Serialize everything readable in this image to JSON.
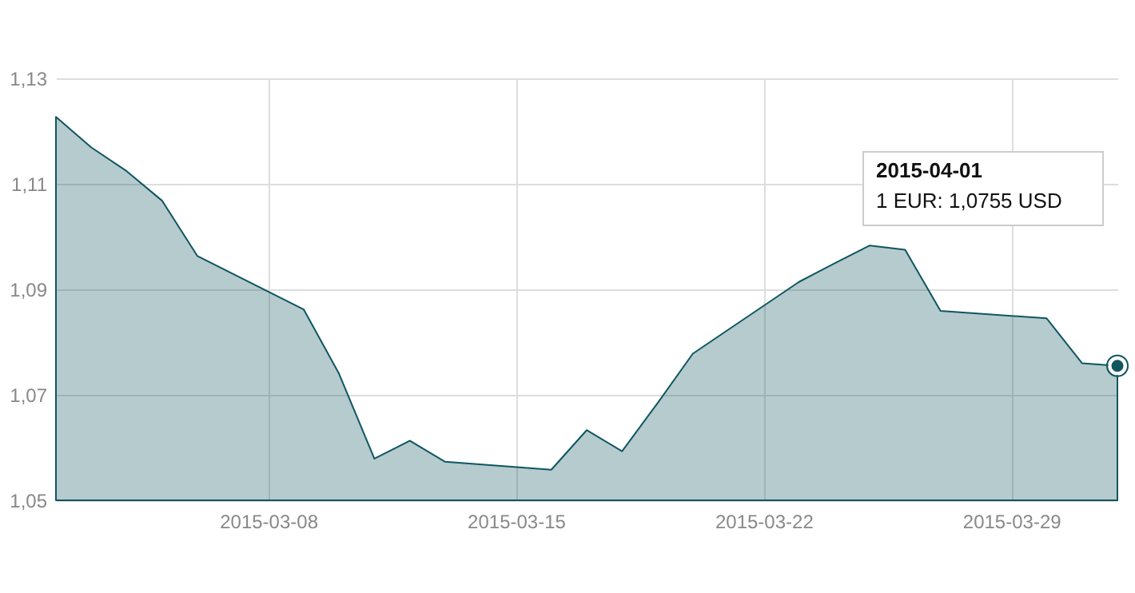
{
  "chart_data": {
    "type": "area",
    "x": [
      "2015-03-02",
      "2015-03-03",
      "2015-03-04",
      "2015-03-05",
      "2015-03-06",
      "2015-03-09",
      "2015-03-10",
      "2015-03-11",
      "2015-03-12",
      "2015-03-13",
      "2015-03-16",
      "2015-03-17",
      "2015-03-18",
      "2015-03-19",
      "2015-03-20",
      "2015-03-23",
      "2015-03-24",
      "2015-03-25",
      "2015-03-26",
      "2015-03-27",
      "2015-03-30",
      "2015-03-31",
      "2015-04-01"
    ],
    "series": [
      {
        "color": "#0f5661",
        "values": [
          1.1227,
          1.1169,
          1.1124,
          1.1068,
          1.0963,
          1.0862,
          1.074,
          1.0579,
          1.0613,
          1.0573,
          1.0558,
          1.0633,
          1.0593,
          1.0684,
          1.0778,
          1.0914,
          1.0949,
          1.0983,
          1.0975,
          1.0859,
          1.0845,
          1.076,
          1.0755
        ]
      }
    ],
    "xlim": [
      "2015-03-02",
      "2015-04-01"
    ],
    "xticks": [
      "2015-03-08",
      "2015-03-15",
      "2015-03-22",
      "2015-03-29"
    ],
    "ylim": [
      1.05,
      1.13
    ],
    "yticks": [
      {
        "value": 1.05,
        "label": "1,05"
      },
      {
        "value": 1.07,
        "label": "1,07"
      },
      {
        "value": 1.09,
        "label": "1,09"
      },
      {
        "value": 1.11,
        "label": "1,11"
      },
      {
        "value": 1.13,
        "label": "1,13"
      }
    ],
    "grid": true,
    "marker": "none",
    "annotations": [
      "2015-04-01",
      "1 EUR: 1,0755 USD"
    ]
  }
}
